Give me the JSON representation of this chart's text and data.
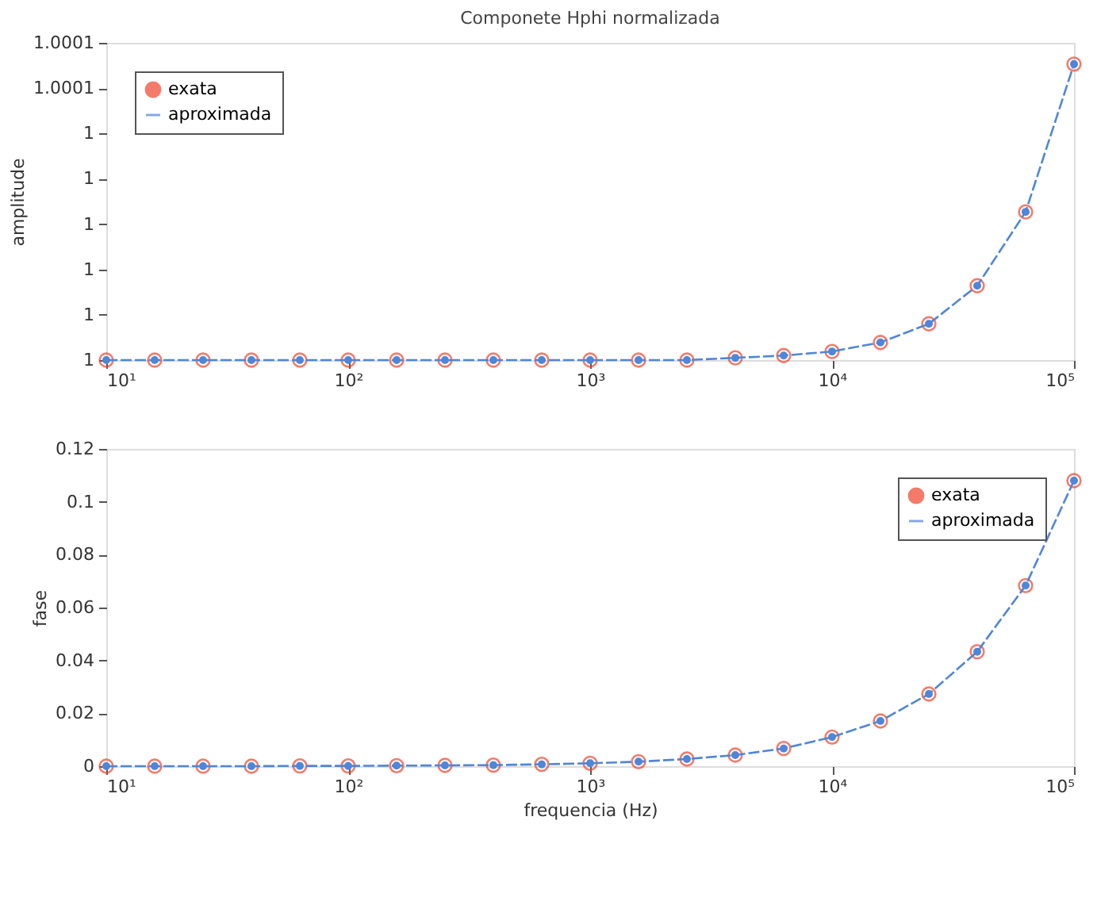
{
  "chart_data": [
    {
      "type": "line",
      "title": "Componete Hphi normalizada",
      "ylabel": "amplitude",
      "x": [
        10,
        15.85,
        25.12,
        39.81,
        63.1,
        100,
        158.5,
        251.2,
        398.1,
        631,
        1000,
        1585,
        2512,
        3981,
        6310,
        10000,
        15850,
        25120,
        39810,
        63100,
        100000
      ],
      "series": [
        {
          "name": "exata",
          "type": "scatter",
          "marker": "circle",
          "color": "#f0442c",
          "values": [
            1,
            1,
            1,
            1,
            1,
            1,
            1,
            1,
            1,
            1,
            1,
            1,
            1,
            1.0000005,
            1.000001,
            1.0000019,
            1.0000039,
            1.000008,
            1.0000164,
            1.0000327,
            1.0000653
          ]
        },
        {
          "name": "aproximada",
          "marker": "circle",
          "line_style": "dashed",
          "color": "#4f86d8",
          "values": [
            1,
            1,
            1,
            1,
            1,
            1,
            1,
            1,
            1,
            1,
            1,
            1,
            1,
            1.0000005,
            1.000001,
            1.0000019,
            1.0000039,
            1.000008,
            1.0000164,
            1.0000327,
            1.0000653
          ]
        }
      ],
      "xlim": [
        10,
        100000
      ],
      "xticks": [
        {
          "value": 10,
          "label": "10¹"
        },
        {
          "value": 100,
          "label": "10²"
        },
        {
          "value": 1000,
          "label": "10³"
        },
        {
          "value": 10000,
          "label": "10⁴"
        },
        {
          "value": 100000,
          "label": "10⁵"
        }
      ],
      "ylim": [
        1,
        1.00007
      ],
      "yticks": [
        1,
        {
          "value": 1.00001,
          "label": "1"
        },
        {
          "value": 1.00002,
          "label": "1"
        },
        {
          "value": 1.00003,
          "label": "1"
        },
        {
          "value": 1.00004,
          "label": "1"
        },
        {
          "value": 1.00005,
          "label": "1"
        },
        {
          "value": 1.00006,
          "label": "1.0001"
        },
        {
          "value": 1.00007,
          "label": "1.0001"
        }
      ],
      "log": "x",
      "grid": false,
      "legend": "top left"
    },
    {
      "type": "line",
      "xlabel": "frequencia (Hz)",
      "ylabel": "fase",
      "x": [
        10,
        15.85,
        25.12,
        39.81,
        63.1,
        100,
        158.5,
        251.2,
        398.1,
        631,
        1000,
        1585,
        2512,
        3981,
        6310,
        10000,
        15850,
        25120,
        39810,
        63100,
        100000
      ],
      "series": [
        {
          "name": "exata",
          "type": "scatter",
          "marker": "circle",
          "color": "#f0442c",
          "values": [
            0,
            0,
            0,
            0,
            0.0001,
            0.0001,
            0.0002,
            0.0003,
            0.0004,
            0.0007,
            0.0011,
            0.0017,
            0.0027,
            0.0042,
            0.0067,
            0.011,
            0.0171,
            0.0273,
            0.0433,
            0.0683,
            0.108
          ]
        },
        {
          "name": "aproximada",
          "marker": "circle",
          "line_style": "dashed",
          "color": "#4f86d8",
          "values": [
            0,
            0,
            0,
            0,
            0.0001,
            0.0001,
            0.0002,
            0.0003,
            0.0004,
            0.0007,
            0.0011,
            0.0017,
            0.0027,
            0.0042,
            0.0067,
            0.011,
            0.0171,
            0.0273,
            0.0433,
            0.0683,
            0.108
          ]
        }
      ],
      "xlim": [
        10,
        100000
      ],
      "xticks": [
        {
          "value": 10,
          "label": "10¹"
        },
        {
          "value": 100,
          "label": "10²"
        },
        {
          "value": 1000,
          "label": "10³"
        },
        {
          "value": 10000,
          "label": "10⁴"
        },
        {
          "value": 100000,
          "label": "10⁵"
        }
      ],
      "ylim": [
        0,
        0.12
      ],
      "yticks": [
        0,
        0.02,
        0.04,
        0.06,
        0.08,
        0.1,
        0.12
      ],
      "log": "x",
      "grid": false,
      "legend": "top right"
    }
  ]
}
